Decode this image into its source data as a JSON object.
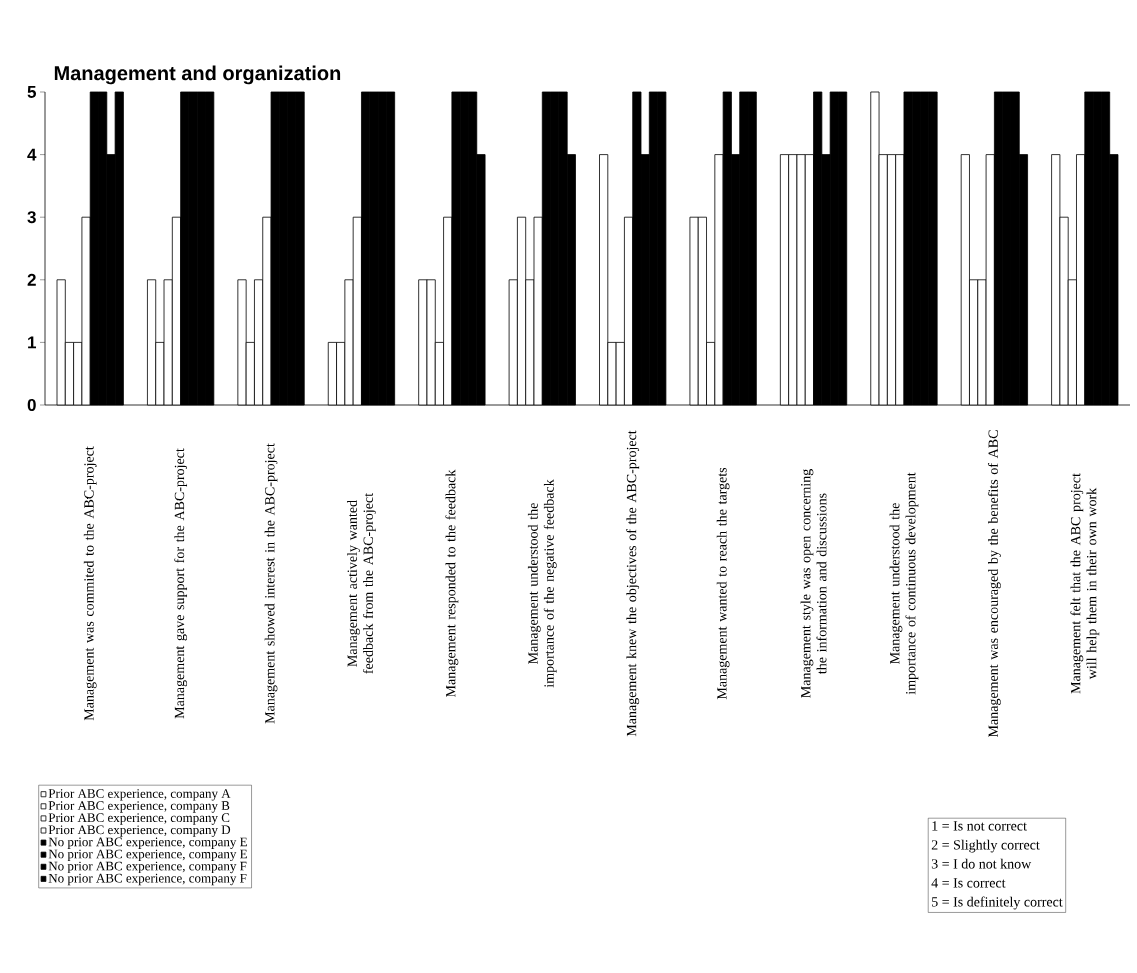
{
  "chart_data": {
    "type": "bar",
    "title": "Management and organization",
    "categories": [
      "Management was commited to the ABC-project",
      "Management gave support for the ABC-project",
      "Management showed interest in the ABC-project",
      "Management actively wanted feedback from the ABC-project",
      "Management responded to the feedback",
      "Management understood the importance of the negative feedback",
      "Management knew the objectives of the ABC-project",
      "Management wanted to reach the targets",
      "Management style was open concerning the information and discussions",
      "Management understood the importance of continuous development",
      "Management was encouraged by the benefits of ABC",
      "Management felt that the ABC project will help them in their own work"
    ],
    "series": [
      {
        "name": "Prior ABC experience, company A",
        "color": "#ffffff",
        "values": [
          2,
          2,
          2,
          1,
          2,
          2,
          4,
          3,
          4,
          5,
          4,
          4
        ]
      },
      {
        "name": "Prior ABC experience, company B",
        "color": "#ffffff",
        "values": [
          1,
          1,
          1,
          1,
          2,
          3,
          1,
          3,
          4,
          4,
          2,
          3
        ]
      },
      {
        "name": "Prior ABC experience, company C",
        "color": "#ffffff",
        "values": [
          1,
          2,
          2,
          2,
          1,
          2,
          1,
          1,
          4,
          4,
          2,
          2
        ]
      },
      {
        "name": "Prior ABC experience, company D",
        "color": "#ffffff",
        "values": [
          3,
          3,
          3,
          3,
          3,
          3,
          3,
          4,
          4,
          4,
          4,
          4
        ]
      },
      {
        "name": "No prior ABC experience, company E",
        "color": "#000000",
        "values": [
          5,
          5,
          5,
          5,
          5,
          5,
          5,
          5,
          5,
          5,
          5,
          5
        ]
      },
      {
        "name": "No prior ABC experience, company E",
        "color": "#000000",
        "values": [
          5,
          5,
          5,
          5,
          5,
          5,
          4,
          4,
          4,
          5,
          5,
          5
        ]
      },
      {
        "name": "No prior ABC experience, company F",
        "color": "#000000",
        "values": [
          4,
          5,
          5,
          5,
          5,
          5,
          5,
          5,
          5,
          5,
          5,
          5
        ]
      },
      {
        "name": "No prior ABC experience, company F",
        "color": "#000000",
        "values": [
          5,
          5,
          5,
          5,
          4,
          4,
          5,
          5,
          5,
          5,
          4,
          4
        ]
      }
    ],
    "ylim": [
      0,
      5
    ],
    "yticks": [
      0,
      1,
      2,
      3,
      4,
      5
    ],
    "grid": false,
    "legend": "bottom left",
    "annotations": [
      "1 = Is not correct",
      "2 = Slightly correct",
      "3 = I do not know",
      "4 = Is correct",
      "5 = Is definitely correct"
    ]
  }
}
